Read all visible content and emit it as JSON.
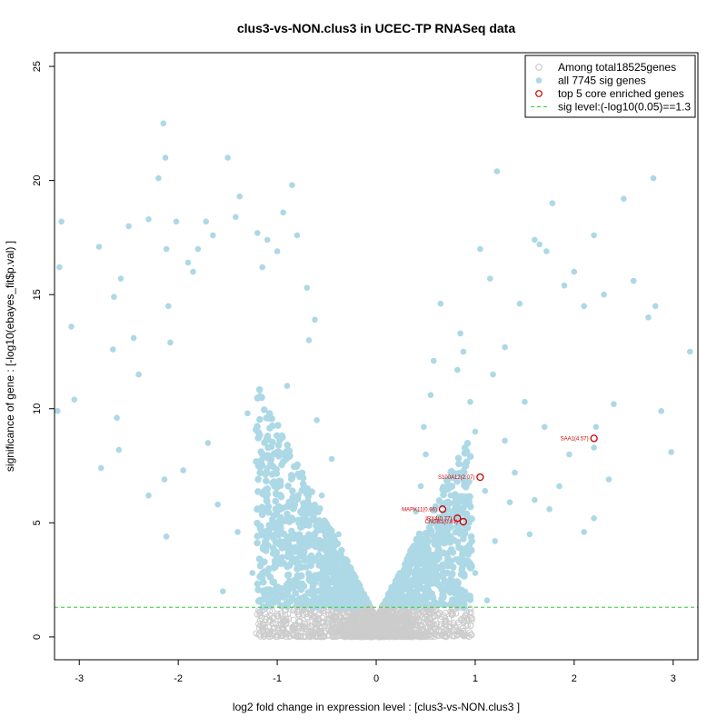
{
  "chart_data": {
    "type": "scatter",
    "title": "clus3-vs-NON.clus3 in UCEC-TP RNASeq data",
    "xlabel": "log2 fold change in expression level : [clus3-vs-NON.clus3 ]",
    "ylabel": "significance of gene : [-log10(ebayes_fit$p.val) ]",
    "xlim": [
      -3.25,
      3.25
    ],
    "ylim": [
      -1.0,
      25.6
    ],
    "xticks": [
      "-3",
      "-2",
      "-1",
      "0",
      "1",
      "2",
      "3"
    ],
    "yticks": [
      "0",
      "5",
      "10",
      "15",
      "20",
      "25"
    ],
    "legend_position": "top-right",
    "threshold": {
      "value": 1.3,
      "label": "sig level:(-log10(0.05)==1.3",
      "color": "#33cc33"
    },
    "legend": [
      {
        "label": "Among total18525genes",
        "color": "#cccccc",
        "marker": "open-circle"
      },
      {
        "label": "all 7745 sig genes",
        "color": "#add8e6",
        "marker": "filled-circle"
      },
      {
        "label": "top 5 core enriched genes",
        "color": "#cc0000",
        "marker": "open-circle"
      },
      {
        "label": "sig level:(-log10(0.05)==1.3",
        "color": "#33cc33",
        "marker": "dashed-line"
      }
    ],
    "series": [
      {
        "name": "all 7745 sig genes",
        "color": "#add8e6",
        "points": [
          [
            -3.18,
            18.2
          ],
          [
            -3.2,
            16.2
          ],
          [
            -3.22,
            9.9
          ],
          [
            -3.05,
            10.4
          ],
          [
            -3.08,
            13.6
          ],
          [
            -2.8,
            17.1
          ],
          [
            -2.58,
            15.7
          ],
          [
            -2.65,
            14.9
          ],
          [
            -2.66,
            12.6
          ],
          [
            -2.62,
            9.6
          ],
          [
            -2.6,
            8.2
          ],
          [
            -2.78,
            7.4
          ],
          [
            -2.5,
            18.0
          ],
          [
            -2.45,
            13.1
          ],
          [
            -2.4,
            11.5
          ],
          [
            -2.3,
            18.3
          ],
          [
            -2.2,
            20.1
          ],
          [
            -2.15,
            22.5
          ],
          [
            -2.13,
            21.0
          ],
          [
            -2.12,
            17.0
          ],
          [
            -2.1,
            14.5
          ],
          [
            -2.08,
            12.9
          ],
          [
            -2.02,
            18.2
          ],
          [
            -1.9,
            16.4
          ],
          [
            -1.85,
            16.0
          ],
          [
            -1.8,
            17.0
          ],
          [
            -1.72,
            18.2
          ],
          [
            -1.65,
            17.6
          ],
          [
            -1.5,
            21.0
          ],
          [
            -1.42,
            18.4
          ],
          [
            -1.38,
            19.3
          ],
          [
            -1.2,
            17.7
          ],
          [
            -1.1,
            17.4
          ],
          [
            -1.0,
            16.9
          ],
          [
            -0.94,
            18.6
          ],
          [
            -0.85,
            19.8
          ],
          [
            -0.8,
            17.6
          ],
          [
            -1.15,
            16.2
          ],
          [
            -0.7,
            15.3
          ],
          [
            -0.62,
            13.9
          ],
          [
            -0.68,
            13.0
          ],
          [
            -2.14,
            6.9
          ],
          [
            -2.12,
            4.4
          ],
          [
            -2.3,
            6.2
          ],
          [
            -1.55,
            2.0
          ],
          [
            -1.25,
            2.8
          ],
          [
            -0.6,
            9.5
          ],
          [
            -0.45,
            7.8
          ],
          [
            -0.55,
            6.2
          ],
          [
            -0.58,
            5.1
          ],
          [
            -0.38,
            4.5
          ],
          [
            -0.42,
            3.4
          ],
          [
            -0.35,
            2.6
          ],
          [
            -0.3,
            2.0
          ],
          [
            -0.25,
            1.6
          ],
          [
            -0.9,
            11.0
          ],
          [
            -1.3,
            9.8
          ],
          [
            -1.7,
            8.5
          ],
          [
            -1.95,
            7.3
          ],
          [
            -1.1,
            7.4
          ],
          [
            -0.82,
            6.1
          ],
          [
            -0.72,
            5.2
          ],
          [
            -0.7,
            4.0
          ],
          [
            -0.95,
            3.5
          ],
          [
            -1.4,
            4.6
          ],
          [
            -1.6,
            5.8
          ],
          [
            -0.5,
            3.0
          ],
          [
            1.22,
            20.4
          ],
          [
            1.05,
            17.0
          ],
          [
            1.15,
            15.7
          ],
          [
            0.65,
            14.6
          ],
          [
            0.85,
            13.3
          ],
          [
            0.88,
            12.5
          ],
          [
            1.18,
            11.5
          ],
          [
            1.3,
            12.7
          ],
          [
            1.45,
            14.6
          ],
          [
            1.6,
            17.4
          ],
          [
            1.65,
            17.2
          ],
          [
            1.72,
            16.9
          ],
          [
            1.78,
            19.0
          ],
          [
            1.9,
            15.4
          ],
          [
            2.0,
            16.0
          ],
          [
            2.1,
            14.5
          ],
          [
            2.2,
            17.6
          ],
          [
            2.3,
            15.0
          ],
          [
            2.5,
            19.2
          ],
          [
            2.6,
            15.6
          ],
          [
            2.75,
            14.0
          ],
          [
            2.8,
            20.1
          ],
          [
            2.82,
            14.5
          ],
          [
            3.17,
            12.5
          ],
          [
            2.88,
            9.9
          ],
          [
            2.98,
            8.1
          ],
          [
            2.22,
            9.2
          ],
          [
            2.2,
            8.3
          ],
          [
            2.35,
            6.9
          ],
          [
            2.2,
            5.2
          ],
          [
            2.1,
            4.6
          ],
          [
            1.75,
            5.6
          ],
          [
            1.7,
            9.2
          ],
          [
            1.5,
            10.3
          ],
          [
            1.4,
            7.2
          ],
          [
            1.3,
            8.6
          ],
          [
            1.0,
            9.0
          ],
          [
            0.9,
            7.6
          ],
          [
            0.55,
            10.6
          ],
          [
            0.5,
            8.0
          ],
          [
            0.45,
            6.6
          ],
          [
            0.4,
            5.5
          ],
          [
            0.38,
            4.0
          ],
          [
            0.34,
            3.3
          ],
          [
            0.3,
            2.4
          ],
          [
            0.26,
            1.7
          ],
          [
            1.12,
            1.6
          ],
          [
            1.0,
            2.8
          ],
          [
            1.2,
            4.2
          ],
          [
            0.8,
            3.4
          ],
          [
            0.7,
            4.5
          ],
          [
            1.55,
            4.5
          ],
          [
            1.85,
            6.6
          ],
          [
            1.95,
            8.0
          ],
          [
            0.95,
            10.3
          ],
          [
            0.82,
            11.7
          ],
          [
            0.75,
            6.2
          ],
          [
            0.65,
            5.0
          ],
          [
            0.6,
            3.6
          ],
          [
            0.52,
            2.8
          ],
          [
            1.35,
            5.9
          ],
          [
            1.1,
            6.4
          ],
          [
            0.85,
            5.5
          ],
          [
            0.48,
            9.2
          ],
          [
            1.6,
            6.0
          ],
          [
            2.4,
            10.2
          ],
          [
            0.58,
            12.1
          ]
        ]
      },
      {
        "name": "top 5 core enriched genes",
        "color": "#cc0000",
        "points": [
          {
            "x": 2.2,
            "y": 8.7,
            "gene": "SAA1(4.57)"
          },
          {
            "x": 1.05,
            "y": 7.0,
            "gene": "S100A12(2.07)"
          },
          {
            "x": 0.67,
            "y": 5.6,
            "gene": "MAPK11(0.66)"
          },
          {
            "x": 0.82,
            "y": 5.2,
            "gene": "IRX4(0.77)"
          },
          {
            "x": 0.88,
            "y": 5.05,
            "gene": "CNGB1(0.89)"
          }
        ]
      }
    ],
    "nonsig_color": "#cccccc"
  }
}
